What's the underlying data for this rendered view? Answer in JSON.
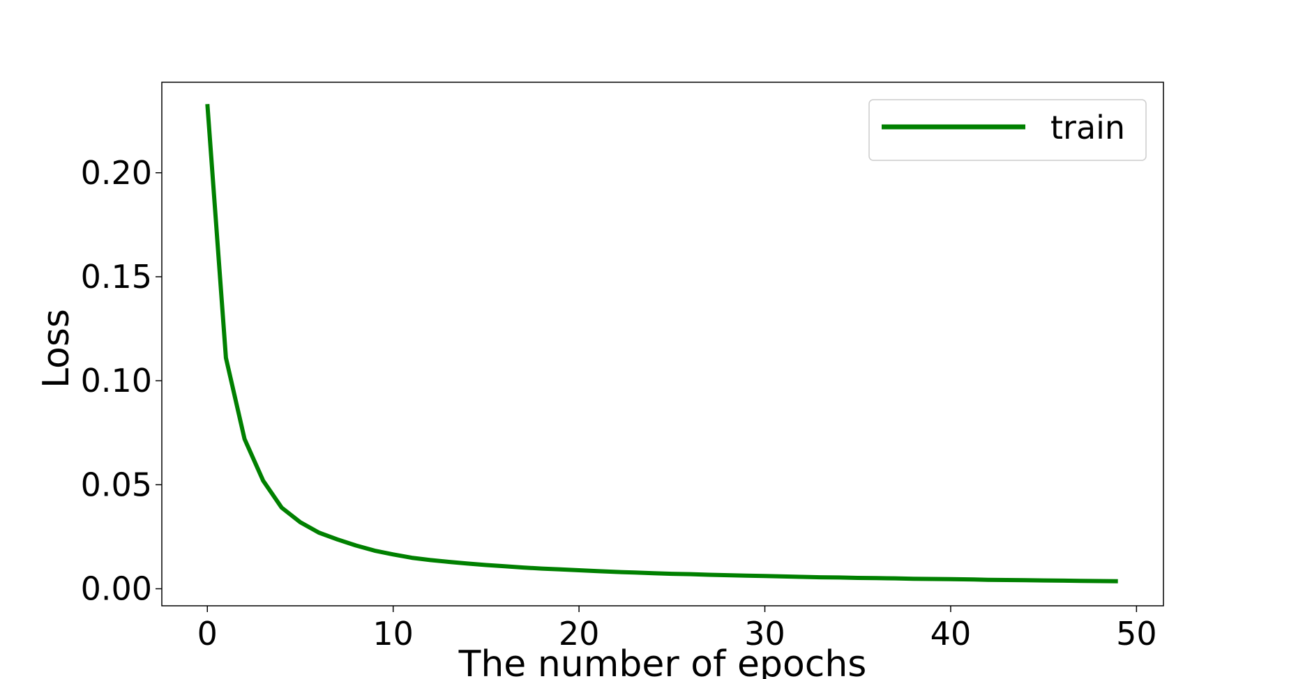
{
  "chart_data": {
    "type": "line",
    "title": "",
    "xlabel": "The number of epochs",
    "ylabel": "Loss",
    "xlim": [
      -2.45,
      51.45
    ],
    "ylim": [
      -0.0082,
      0.2435
    ],
    "xticks": [
      0,
      10,
      20,
      30,
      40,
      50
    ],
    "yticks": [
      0.0,
      0.05,
      0.1,
      0.15,
      0.2
    ],
    "xtick_labels": [
      "0",
      "10",
      "20",
      "30",
      "40",
      "50"
    ],
    "ytick_labels": [
      "0.00",
      "0.05",
      "0.10",
      "0.15",
      "0.20"
    ],
    "grid": false,
    "legend_position": "top-right",
    "series": [
      {
        "name": "train",
        "color": "#008000",
        "x": [
          0,
          1,
          2,
          3,
          4,
          5,
          6,
          7,
          8,
          9,
          10,
          11,
          12,
          13,
          14,
          15,
          16,
          17,
          18,
          19,
          20,
          21,
          22,
          23,
          24,
          25,
          26,
          27,
          28,
          29,
          30,
          31,
          32,
          33,
          34,
          35,
          36,
          37,
          38,
          39,
          40,
          41,
          42,
          43,
          44,
          45,
          46,
          47,
          48,
          49
        ],
        "values": [
          0.233,
          0.111,
          0.072,
          0.052,
          0.039,
          0.032,
          0.027,
          0.0237,
          0.0208,
          0.0183,
          0.0165,
          0.0149,
          0.0138,
          0.0129,
          0.0121,
          0.0114,
          0.0108,
          0.0102,
          0.0097,
          0.0093,
          0.0089,
          0.0085,
          0.0081,
          0.0078,
          0.0075,
          0.0072,
          0.007,
          0.0067,
          0.0065,
          0.0063,
          0.0061,
          0.0059,
          0.0057,
          0.0055,
          0.0054,
          0.0052,
          0.0051,
          0.005,
          0.0048,
          0.0047,
          0.0046,
          0.0045,
          0.0043,
          0.0042,
          0.0041,
          0.004,
          0.0039,
          0.0038,
          0.0037,
          0.0036
        ]
      }
    ]
  }
}
